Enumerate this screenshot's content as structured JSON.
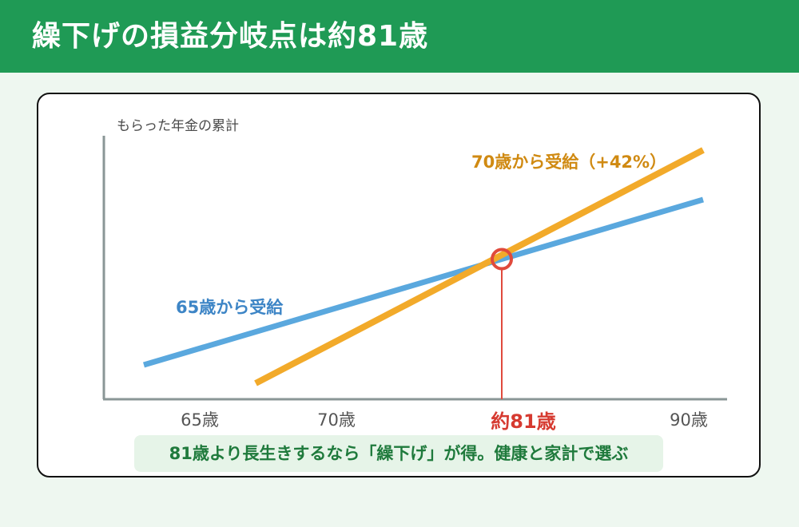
{
  "header": {
    "title": "繰下げの損益分岐点は約81歳",
    "bg_color": "#1f9a55"
  },
  "chart_data": {
    "type": "line",
    "ylabel": "もらった年金の累計",
    "x_tick_labels": [
      "65歳",
      "70歳",
      "約81歳",
      "90歳"
    ],
    "highlight_tick": "約81歳",
    "series": [
      {
        "name": "65歳から受給",
        "color": "#5aa8de",
        "label_color": "#3d85c6",
        "x": [
          65,
          90
        ],
        "y": [
          0.1,
          1.0
        ]
      },
      {
        "name": "70歳から受給（+42%）",
        "color": "#f2aa2a",
        "label_color": "#d08a12",
        "x": [
          70,
          90
        ],
        "y": [
          0.0,
          1.27
        ]
      }
    ],
    "breakeven": {
      "x": 81,
      "marker_color": "#e04a3c"
    },
    "grid": false
  },
  "footer": {
    "note": "81歳より長生きするなら「繰下げ」が得。健康と家計で選ぶ"
  }
}
